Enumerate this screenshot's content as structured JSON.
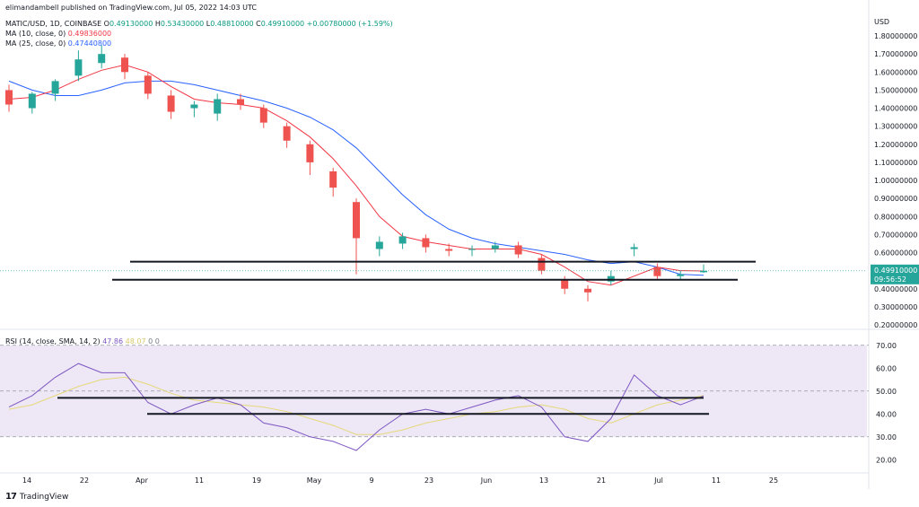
{
  "header": {
    "published": "elimandambell published on TradingView.com, Jul 05, 2022 14:03 UTC",
    "symbol": "MATIC/USD, 1D, COINBASE",
    "ohlc": {
      "o_label": "O",
      "o": "0.49130000",
      "h_label": "H",
      "h": "0.53430000",
      "l_label": "L",
      "l": "0.48810000",
      "c_label": "C",
      "c": "0.49910000",
      "change": "+0.00780000 (+1.59%)"
    },
    "ma10": {
      "label": "MA (10, close, 0)",
      "value": "0.49836000"
    },
    "ma25": {
      "label": "MA (25, close, 0)",
      "value": "0.47440800"
    },
    "rsi": {
      "label": "RSI (14, close, SMA, 14, 2)",
      "value": "47.86",
      "sma_value": "48.07",
      "extra1": "0",
      "extra2": "0"
    }
  },
  "price_axis": {
    "currency": "USD",
    "labels": [
      "1.80000000",
      "1.70000000",
      "1.60000000",
      "1.50000000",
      "1.40000000",
      "1.30000000",
      "1.20000000",
      "1.10000000",
      "1.00000000",
      "0.90000000",
      "0.80000000",
      "0.70000000",
      "0.60000000",
      "0.40000000",
      "0.30000000",
      "0.20000000"
    ],
    "current_price": "0.49910000",
    "countdown": "09:56:52"
  },
  "rsi_axis": {
    "labels": [
      "70.00",
      "60.00",
      "50.00",
      "40.00",
      "30.00",
      "20.00"
    ]
  },
  "time_axis": {
    "labels": [
      "14",
      "22",
      "Apr",
      "11",
      "19",
      "May",
      "9",
      "23",
      "Jun",
      "13",
      "21",
      "Jul",
      "11",
      "25"
    ]
  },
  "footer": {
    "brand": "TradingView"
  },
  "colors": {
    "up": "#26a69a",
    "down": "#ef5350",
    "ma10": "#f23645",
    "ma25": "#2962ff",
    "rsi_line": "#7e57c2",
    "rsi_sma": "#e6d97a",
    "rsi_band": "#ede7f6",
    "support": "#131722"
  },
  "chart_data": [
    {
      "type": "candlestick",
      "title": "MATIC/USD, 1D, COINBASE",
      "ylabel": "USD",
      "ylim": [
        0.2,
        1.85
      ],
      "x": [
        "Mar 13",
        "Mar 17",
        "Mar 21",
        "Mar 25",
        "Mar 29",
        "Apr 2",
        "Apr 6",
        "Apr 10",
        "Apr 14",
        "Apr 18",
        "Apr 22",
        "Apr 26",
        "Apr 30",
        "May 4",
        "May 8",
        "May 11",
        "May 14",
        "May 18",
        "May 22",
        "May 26",
        "May 30",
        "Jun 3",
        "Jun 7",
        "Jun 11",
        "Jun 14",
        "Jun 18",
        "Jun 22",
        "Jun 26",
        "Jun 30",
        "Jul 3",
        "Jul 5"
      ],
      "series": [
        {
          "open": [
            1.5,
            1.4,
            1.48,
            1.58,
            1.65,
            1.68,
            1.58,
            1.47,
            1.4,
            1.37,
            1.45,
            1.4,
            1.3,
            1.2,
            1.05,
            0.88,
            0.62,
            0.65,
            0.68,
            0.62,
            0.62,
            0.62,
            0.64,
            0.57,
            0.45,
            0.4,
            0.44,
            0.62,
            0.52,
            0.47,
            0.4913
          ],
          "close": [
            1.42,
            1.48,
            1.55,
            1.67,
            1.7,
            1.6,
            1.48,
            1.38,
            1.42,
            1.45,
            1.42,
            1.32,
            1.22,
            1.1,
            0.96,
            0.68,
            0.66,
            0.69,
            0.63,
            0.61,
            0.62,
            0.64,
            0.59,
            0.5,
            0.4,
            0.38,
            0.47,
            0.63,
            0.47,
            0.48,
            0.4991
          ],
          "high": [
            1.53,
            1.49,
            1.56,
            1.72,
            1.75,
            1.7,
            1.6,
            1.5,
            1.44,
            1.48,
            1.48,
            1.42,
            1.32,
            1.22,
            1.07,
            0.9,
            0.69,
            0.71,
            0.7,
            0.65,
            0.64,
            0.66,
            0.66,
            0.59,
            0.47,
            0.42,
            0.5,
            0.65,
            0.54,
            0.5,
            0.5343
          ],
          "low": [
            1.38,
            1.37,
            1.44,
            1.55,
            1.62,
            1.56,
            1.45,
            1.34,
            1.35,
            1.33,
            1.39,
            1.29,
            1.18,
            1.03,
            0.91,
            0.48,
            0.58,
            0.62,
            0.6,
            0.58,
            0.58,
            0.6,
            0.57,
            0.48,
            0.37,
            0.33,
            0.42,
            0.58,
            0.45,
            0.45,
            0.4881
          ]
        }
      ],
      "ma10": [
        1.45,
        1.46,
        1.5,
        1.56,
        1.61,
        1.64,
        1.6,
        1.52,
        1.45,
        1.43,
        1.42,
        1.4,
        1.33,
        1.24,
        1.12,
        0.97,
        0.8,
        0.69,
        0.66,
        0.64,
        0.62,
        0.62,
        0.62,
        0.59,
        0.52,
        0.44,
        0.42,
        0.47,
        0.52,
        0.5,
        0.4984
      ],
      "ma25": [
        1.55,
        1.5,
        1.47,
        1.47,
        1.5,
        1.54,
        1.55,
        1.55,
        1.53,
        1.5,
        1.47,
        1.44,
        1.4,
        1.35,
        1.28,
        1.18,
        1.05,
        0.92,
        0.81,
        0.73,
        0.68,
        0.65,
        0.63,
        0.61,
        0.59,
        0.56,
        0.54,
        0.55,
        0.52,
        0.48,
        0.4744
      ],
      "support_lines": [
        0.55,
        0.45
      ]
    },
    {
      "type": "line",
      "title": "RSI (14, close, SMA, 14, 2)",
      "ylim": [
        20,
        70
      ],
      "x": [
        "Mar 13",
        "Mar 17",
        "Mar 21",
        "Mar 25",
        "Mar 29",
        "Apr 2",
        "Apr 6",
        "Apr 10",
        "Apr 14",
        "Apr 18",
        "Apr 22",
        "Apr 26",
        "Apr 30",
        "May 4",
        "May 8",
        "May 11",
        "May 14",
        "May 18",
        "May 22",
        "May 26",
        "May 30",
        "Jun 3",
        "Jun 7",
        "Jun 11",
        "Jun 14",
        "Jun 18",
        "Jun 22",
        "Jun 26",
        "Jun 30",
        "Jul 3",
        "Jul 5"
      ],
      "series": [
        {
          "name": "RSI",
          "values": [
            43,
            48,
            56,
            62,
            58,
            58,
            45,
            40,
            44,
            47,
            44,
            36,
            34,
            30,
            28,
            24,
            33,
            40,
            42,
            40,
            43,
            46,
            48,
            43,
            30,
            28,
            38,
            57,
            48,
            44,
            47.86
          ]
        },
        {
          "name": "RSI SMA",
          "values": [
            42,
            44,
            48,
            52,
            55,
            56,
            53,
            49,
            46,
            45,
            44,
            43,
            41,
            38,
            35,
            31,
            31,
            33,
            36,
            38,
            40,
            41,
            43,
            44,
            42,
            38,
            36,
            40,
            44,
            46,
            48.07
          ]
        }
      ],
      "bands": [
        70,
        50,
        30
      ],
      "support_lines": [
        47,
        40
      ]
    }
  ]
}
